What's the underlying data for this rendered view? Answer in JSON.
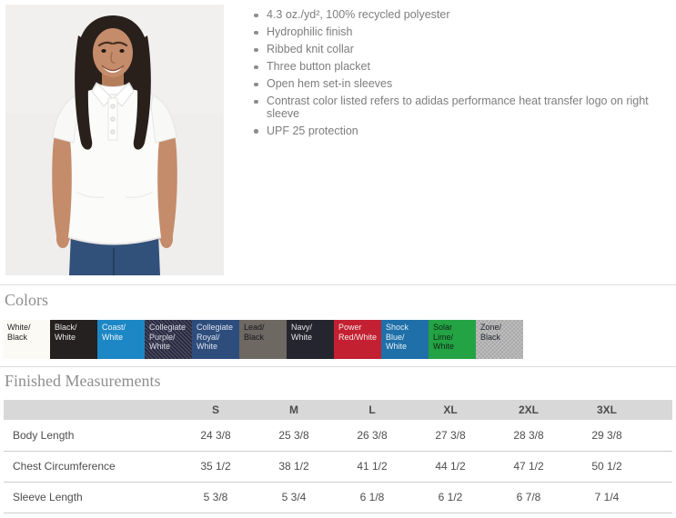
{
  "product": {
    "features": [
      "4.3 oz./yd², 100% recycled polyester",
      "Hydrophilic finish",
      "Ribbed knit collar",
      "Three button placket",
      "Open hem set-in sleeves",
      "Contrast color listed refers to adidas performance heat transfer logo on right sleeve",
      "UPF 25 protection"
    ]
  },
  "colors": {
    "title": "Colors",
    "swatches": [
      {
        "name": "White/Black",
        "text": "White/\nBlack",
        "bg": "#fbfaf4",
        "fg": "#1f1f1f"
      },
      {
        "name": "Black/White",
        "text": "Black/\nWhite",
        "bg": "#242120",
        "fg": "#e8e8e8"
      },
      {
        "name": "Coast/White",
        "text": "Coast/\nWhite",
        "bg": "#1d87c5",
        "fg": "#eef6fb"
      },
      {
        "name": "Collegiate Purple/White",
        "text": "Collegiate\nPurple/\nWhite",
        "bg": "#2a2a43",
        "fg": "#d9dae6",
        "heather": true
      },
      {
        "name": "Collegiate Royal/White",
        "text": "Collegiate\nRoyal/\nWhite",
        "bg": "#2e4d7d",
        "fg": "#dde4ef"
      },
      {
        "name": "Lead/Black",
        "text": "Lead/\nBlack",
        "bg": "#6d6862",
        "fg": "#17171c"
      },
      {
        "name": "Navy/White",
        "text": "Navy/\nWhite",
        "bg": "#25252f",
        "fg": "#e4e4ea"
      },
      {
        "name": "Power Red/White",
        "text": "Power\nRed/White",
        "bg": "#c32031",
        "fg": "#f5e9ea"
      },
      {
        "name": "Shock Blue/White",
        "text": "Shock\nBlue/\nWhite",
        "bg": "#1f6fa9",
        "fg": "#e7f0f7"
      },
      {
        "name": "Solar Lime/White",
        "text": "Solar\nLime/\nWhite",
        "bg": "#24a344",
        "fg": "#0e2415"
      },
      {
        "name": "Zone/Black",
        "text": "Zone/\nBlack",
        "bg": "#b5b5b5",
        "fg": "#23272e",
        "heather": true
      }
    ]
  },
  "measurements": {
    "title": "Finished Measurements",
    "columns": [
      "S",
      "M",
      "L",
      "XL",
      "2XL",
      "3XL"
    ],
    "rows": [
      {
        "label": "Body Length",
        "values": [
          "24 3/8",
          "25 3/8",
          "26 3/8",
          "27 3/8",
          "28 3/8",
          "29 3/8"
        ]
      },
      {
        "label": "Chest Circumference",
        "values": [
          "35 1/2",
          "38 1/2",
          "41 1/2",
          "44 1/2",
          "47 1/2",
          "50 1/2"
        ]
      },
      {
        "label": "Sleeve Length",
        "values": [
          "5 3/8",
          "5 3/4",
          "6 1/8",
          "6 1/2",
          "6 7/8",
          "7 1/4"
        ]
      }
    ]
  }
}
